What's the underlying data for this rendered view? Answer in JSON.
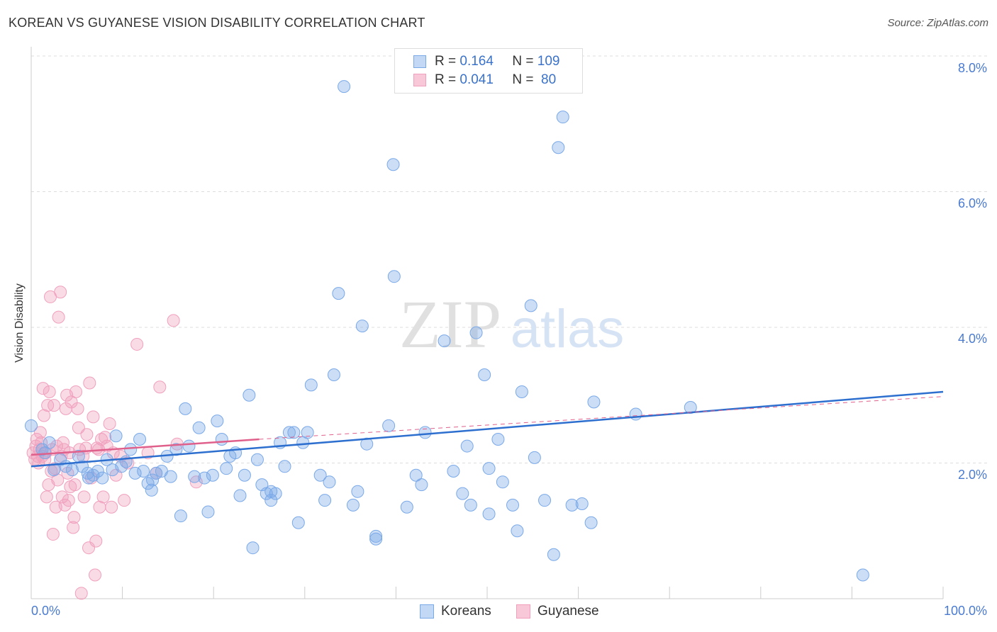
{
  "header": {
    "title": "KOREAN VS GUYANESE VISION DISABILITY CORRELATION CHART",
    "source": "Source: ZipAtlas.com"
  },
  "legend": {
    "rows": [
      {
        "r_label": "R =",
        "r_value": "0.164",
        "n_label": "N =",
        "n_value": "109",
        "color": "#7aa9e8"
      },
      {
        "r_label": "R =",
        "r_value": "0.041",
        "n_label": "N =",
        "n_value": " 80",
        "color": "#f0a0bd"
      }
    ]
  },
  "watermark": {
    "zip": "ZIP",
    "atlas": "atlas"
  },
  "bottom_legend": [
    {
      "label": "Koreans",
      "color": "#7aa9e8"
    },
    {
      "label": "Guyanese",
      "color": "#f0a0bd"
    }
  ],
  "chart_data": {
    "type": "scatter",
    "title": "KOREAN VS GUYANESE VISION DISABILITY CORRELATION CHART",
    "ylabel": "Vision Disability",
    "xlabel": "",
    "xlim": [
      0,
      100
    ],
    "ylim": [
      0,
      8.2
    ],
    "x_tick_labels": {
      "left": "0.0%",
      "right": "100.0%"
    },
    "y_ticks": [
      {
        "value": 2,
        "label": "2.0%"
      },
      {
        "value": 4,
        "label": "4.0%"
      },
      {
        "value": 6,
        "label": "6.0%"
      },
      {
        "value": 8,
        "label": "8.0%"
      }
    ],
    "grid": "dashed horizontal",
    "series": [
      {
        "name": "Koreans",
        "color": "#7aa9e8",
        "line_color": "#2d6fcf",
        "trend": {
          "x0": 0,
          "y0": 1.95,
          "x1": 100,
          "y1": 3.05,
          "style": "solid"
        },
        "points": [
          [
            0.0,
            2.55
          ],
          [
            1.2,
            2.2
          ],
          [
            1.5,
            2.15
          ],
          [
            2.0,
            2.3
          ],
          [
            2.5,
            1.9
          ],
          [
            3.2,
            2.05
          ],
          [
            3.8,
            1.95
          ],
          [
            4.5,
            1.9
          ],
          [
            5.2,
            2.1
          ],
          [
            5.6,
            1.95
          ],
          [
            6.2,
            1.85
          ],
          [
            6.8,
            1.82
          ],
          [
            7.3,
            1.88
          ],
          [
            7.8,
            1.78
          ],
          [
            8.3,
            2.05
          ],
          [
            8.9,
            1.9
          ],
          [
            9.3,
            2.4
          ],
          [
            9.9,
            1.95
          ],
          [
            10.4,
            2.02
          ],
          [
            10.9,
            2.2
          ],
          [
            11.4,
            1.85
          ],
          [
            11.9,
            2.35
          ],
          [
            12.3,
            1.88
          ],
          [
            12.8,
            1.7
          ],
          [
            13.2,
            1.6
          ],
          [
            13.7,
            1.85
          ],
          [
            14.3,
            1.88
          ],
          [
            14.9,
            2.1
          ],
          [
            15.3,
            1.8
          ],
          [
            15.9,
            2.2
          ],
          [
            16.4,
            1.22
          ],
          [
            16.9,
            2.8
          ],
          [
            17.3,
            2.25
          ],
          [
            17.9,
            1.8
          ],
          [
            18.4,
            2.52
          ],
          [
            19.0,
            1.78
          ],
          [
            19.4,
            1.28
          ],
          [
            19.9,
            1.82
          ],
          [
            20.4,
            2.62
          ],
          [
            20.9,
            2.35
          ],
          [
            21.4,
            1.92
          ],
          [
            21.8,
            2.1
          ],
          [
            22.4,
            2.15
          ],
          [
            22.9,
            1.52
          ],
          [
            23.4,
            1.82
          ],
          [
            23.9,
            3.0
          ],
          [
            24.3,
            0.75
          ],
          [
            24.8,
            2.05
          ],
          [
            25.3,
            1.68
          ],
          [
            25.8,
            1.55
          ],
          [
            26.3,
            1.45
          ],
          [
            26.8,
            1.55
          ],
          [
            27.3,
            2.3
          ],
          [
            27.8,
            1.95
          ],
          [
            28.3,
            2.45
          ],
          [
            28.8,
            2.45
          ],
          [
            29.3,
            1.12
          ],
          [
            29.8,
            2.3
          ],
          [
            30.3,
            2.45
          ],
          [
            30.7,
            3.15
          ],
          [
            31.7,
            1.82
          ],
          [
            32.2,
            1.45
          ],
          [
            32.7,
            1.72
          ],
          [
            33.2,
            3.3
          ],
          [
            33.7,
            4.5
          ],
          [
            34.3,
            7.55
          ],
          [
            35.3,
            1.38
          ],
          [
            35.8,
            1.58
          ],
          [
            36.3,
            4.02
          ],
          [
            36.8,
            2.28
          ],
          [
            37.8,
            0.92
          ],
          [
            37.8,
            0.88
          ],
          [
            39.2,
            2.55
          ],
          [
            39.7,
            6.4
          ],
          [
            39.8,
            4.75
          ],
          [
            41.2,
            1.35
          ],
          [
            42.2,
            1.82
          ],
          [
            42.8,
            1.68
          ],
          [
            43.2,
            2.45
          ],
          [
            45.3,
            3.8
          ],
          [
            46.3,
            1.88
          ],
          [
            47.3,
            1.55
          ],
          [
            47.8,
            2.25
          ],
          [
            48.2,
            1.38
          ],
          [
            48.8,
            3.92
          ],
          [
            49.7,
            3.3
          ],
          [
            50.2,
            1.92
          ],
          [
            50.2,
            1.25
          ],
          [
            51.2,
            2.35
          ],
          [
            51.7,
            1.72
          ],
          [
            52.8,
            1.38
          ],
          [
            53.3,
            1.0
          ],
          [
            53.8,
            3.05
          ],
          [
            54.8,
            4.32
          ],
          [
            55.2,
            2.08
          ],
          [
            56.3,
            1.45
          ],
          [
            57.3,
            0.65
          ],
          [
            57.8,
            6.65
          ],
          [
            58.3,
            7.1
          ],
          [
            59.3,
            1.38
          ],
          [
            60.4,
            1.4
          ],
          [
            61.4,
            1.12
          ],
          [
            61.7,
            2.9
          ],
          [
            66.3,
            2.72
          ],
          [
            72.3,
            2.82
          ],
          [
            91.2,
            0.35
          ],
          [
            13.3,
            1.75
          ],
          [
            26.3,
            1.58
          ],
          [
            6.3,
            1.78
          ]
        ]
      },
      {
        "name": "Guyanese",
        "color": "#f0a0bd",
        "line_color": "#e0608c",
        "trend": {
          "x0": 0,
          "y0": 2.12,
          "x1": 25,
          "y1": 2.35,
          "style": "solid",
          "extend_to": {
            "x": 100,
            "y": 2.98,
            "style": "dashed"
          }
        },
        "points": [
          [
            0.2,
            2.15
          ],
          [
            0.4,
            2.05
          ],
          [
            0.5,
            2.25
          ],
          [
            0.6,
            2.35
          ],
          [
            0.7,
            2.1
          ],
          [
            0.8,
            2.0
          ],
          [
            0.9,
            2.2
          ],
          [
            1.0,
            2.45
          ],
          [
            1.1,
            2.3
          ],
          [
            1.2,
            2.1
          ],
          [
            1.3,
            3.1
          ],
          [
            1.4,
            2.7
          ],
          [
            1.5,
            2.05
          ],
          [
            1.6,
            2.15
          ],
          [
            1.7,
            1.5
          ],
          [
            1.8,
            2.85
          ],
          [
            1.9,
            1.68
          ],
          [
            2.0,
            3.05
          ],
          [
            2.1,
            4.45
          ],
          [
            2.2,
            1.88
          ],
          [
            2.3,
            2.2
          ],
          [
            2.4,
            0.95
          ],
          [
            2.5,
            2.85
          ],
          [
            2.6,
            1.92
          ],
          [
            2.7,
            1.35
          ],
          [
            2.8,
            2.25
          ],
          [
            2.9,
            1.75
          ],
          [
            3.0,
            4.15
          ],
          [
            3.2,
            4.52
          ],
          [
            3.3,
            2.1
          ],
          [
            3.4,
            1.5
          ],
          [
            3.5,
            2.3
          ],
          [
            3.6,
            2.2
          ],
          [
            3.7,
            1.38
          ],
          [
            3.8,
            2.8
          ],
          [
            3.9,
            3.0
          ],
          [
            4.0,
            1.85
          ],
          [
            4.1,
            1.45
          ],
          [
            4.2,
            2.15
          ],
          [
            4.3,
            1.65
          ],
          [
            4.4,
            2.9
          ],
          [
            4.6,
            1.05
          ],
          [
            4.7,
            1.2
          ],
          [
            4.8,
            1.68
          ],
          [
            4.9,
            3.05
          ],
          [
            5.1,
            2.8
          ],
          [
            5.2,
            2.52
          ],
          [
            5.3,
            2.2
          ],
          [
            5.5,
            0.08
          ],
          [
            5.7,
            2.1
          ],
          [
            5.8,
            1.5
          ],
          [
            6.0,
            2.22
          ],
          [
            6.1,
            2.42
          ],
          [
            6.3,
            0.75
          ],
          [
            6.4,
            3.18
          ],
          [
            6.6,
            1.78
          ],
          [
            6.8,
            2.68
          ],
          [
            7.0,
            0.35
          ],
          [
            7.1,
            0.85
          ],
          [
            7.2,
            2.22
          ],
          [
            7.4,
            2.2
          ],
          [
            7.5,
            1.35
          ],
          [
            7.7,
            2.35
          ],
          [
            7.9,
            1.5
          ],
          [
            8.1,
            2.38
          ],
          [
            8.3,
            2.25
          ],
          [
            8.6,
            2.58
          ],
          [
            8.8,
            1.35
          ],
          [
            9.0,
            2.15
          ],
          [
            9.3,
            1.82
          ],
          [
            9.8,
            2.1
          ],
          [
            10.2,
            1.45
          ],
          [
            10.6,
            2.0
          ],
          [
            11.6,
            3.75
          ],
          [
            12.8,
            2.15
          ],
          [
            13.7,
            1.85
          ],
          [
            14.1,
            3.12
          ],
          [
            15.6,
            4.1
          ],
          [
            16.0,
            2.28
          ],
          [
            18.1,
            1.72
          ]
        ]
      }
    ]
  }
}
